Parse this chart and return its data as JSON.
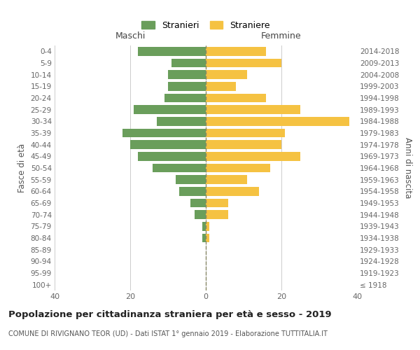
{
  "age_groups": [
    "100+",
    "95-99",
    "90-94",
    "85-89",
    "80-84",
    "75-79",
    "70-74",
    "65-69",
    "60-64",
    "55-59",
    "50-54",
    "45-49",
    "40-44",
    "35-39",
    "30-34",
    "25-29",
    "20-24",
    "15-19",
    "10-14",
    "5-9",
    "0-4"
  ],
  "birth_years": [
    "≤ 1918",
    "1919-1923",
    "1924-1928",
    "1929-1933",
    "1934-1938",
    "1939-1943",
    "1944-1948",
    "1949-1953",
    "1954-1958",
    "1959-1963",
    "1964-1968",
    "1969-1973",
    "1974-1978",
    "1979-1983",
    "1984-1988",
    "1989-1993",
    "1994-1998",
    "1999-2003",
    "2004-2008",
    "2009-2013",
    "2014-2018"
  ],
  "males": [
    0,
    0,
    0,
    0,
    1,
    1,
    3,
    4,
    7,
    8,
    14,
    18,
    20,
    22,
    13,
    19,
    11,
    10,
    10,
    9,
    18
  ],
  "females": [
    0,
    0,
    0,
    0,
    1,
    1,
    6,
    6,
    14,
    11,
    17,
    25,
    20,
    21,
    38,
    25,
    16,
    8,
    11,
    20,
    16
  ],
  "male_color": "#6a9e5b",
  "female_color": "#f5c242",
  "grid_color": "#cccccc",
  "center_line_color": "#888866",
  "title": "Popolazione per cittadinanza straniera per età e sesso - 2019",
  "subtitle": "COMUNE DI RIVIGNANO TEOR (UD) - Dati ISTAT 1° gennaio 2019 - Elaborazione TUTTITALIA.IT",
  "left_header": "Maschi",
  "right_header": "Femmine",
  "ylabel_left": "Fasce di età",
  "ylabel_right": "Anni di nascita",
  "legend_male": "Stranieri",
  "legend_female": "Straniere",
  "xlim": 40,
  "background_color": "#ffffff"
}
